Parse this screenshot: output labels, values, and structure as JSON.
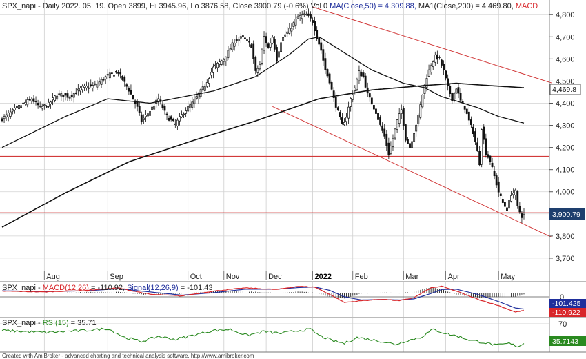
{
  "header": {
    "main_title": "SPX_napi - Daily 2022. 05. 19. Open 3899, Hi 3945.96, Lo 3876.58, Close 3900.79 (-0.6%) Vol 0 ",
    "ma50_label": "MA(Close,50) = 4,309.88, ",
    "ma200_label": "MA1(Close,200) = 4,469.80, ",
    "macd_tail": "MACD",
    "macd_title_prefix": "SPX_napi - ",
    "macd_label": "MACD(12,26)",
    "macd_value": " = -110.92, ",
    "signal_label": "Signal(12,26,9)",
    "signal_value": " = -101.43",
    "rsi_title_prefix": "SPX_napi - ",
    "rsi_label": "RSI(15)",
    "rsi_value": " = 35.71"
  },
  "footer": "Created with AmiBroker - advanced charting and technical analysis software. http://www.amibroker.com",
  "colors": {
    "up": "#111111",
    "down": "#111111",
    "ma": "#111111",
    "trend": "#d23a3a",
    "macd": "#d8262a",
    "signal": "#1f2f9c",
    "rsi": "#2a8a20",
    "grid": "#c8c8c8",
    "blue_text": "#1f2f9c",
    "red_text": "#d8262a",
    "green_text": "#2a8a20"
  },
  "chart_data": [
    {
      "type": "candlestick",
      "symbol": "SPX_napi",
      "ylim": [
        3600,
        4860
      ],
      "y_ticks": [
        "4,800",
        "4,700",
        "4,600",
        "4,500",
        "4,400",
        "4,300",
        "4,200",
        "4,100",
        "4,000",
        "3,900",
        "3,800",
        "3,700"
      ],
      "y_tick_values": [
        4800,
        4700,
        4600,
        4500,
        4400,
        4300,
        4200,
        4100,
        4000,
        3900,
        3800,
        3700
      ],
      "x_months": [
        "Aug",
        "Sep",
        "Oct",
        "Nov",
        "Dec",
        "2022",
        "Feb",
        "Mar",
        "Apr",
        "May"
      ],
      "x_month_index": [
        20,
        50,
        88,
        105,
        125,
        147,
        166,
        190,
        210,
        235
      ],
      "num_bars": 248,
      "anchors": [
        [
          0,
          4330
        ],
        [
          8,
          4385
        ],
        [
          14,
          4420
        ],
        [
          18,
          4380
        ],
        [
          22,
          4395
        ],
        [
          26,
          4440
        ],
        [
          32,
          4430
        ],
        [
          38,
          4470
        ],
        [
          44,
          4480
        ],
        [
          50,
          4525
        ],
        [
          55,
          4540
        ],
        [
          60,
          4460
        ],
        [
          64,
          4380
        ],
        [
          66,
          4320
        ],
        [
          70,
          4365
        ],
        [
          74,
          4420
        ],
        [
          78,
          4340
        ],
        [
          82,
          4305
        ],
        [
          86,
          4360
        ],
        [
          90,
          4400
        ],
        [
          96,
          4480
        ],
        [
          100,
          4560
        ],
        [
          105,
          4600
        ],
        [
          110,
          4680
        ],
        [
          114,
          4700
        ],
        [
          118,
          4660
        ],
        [
          120,
          4540
        ],
        [
          122,
          4575
        ],
        [
          124,
          4700
        ],
        [
          126,
          4650
        ],
        [
          128,
          4700
        ],
        [
          130,
          4600
        ],
        [
          132,
          4680
        ],
        [
          134,
          4710
        ],
        [
          136,
          4730
        ],
        [
          140,
          4790
        ],
        [
          144,
          4800
        ],
        [
          147,
          4770
        ],
        [
          149,
          4700
        ],
        [
          151,
          4640
        ],
        [
          153,
          4550
        ],
        [
          155,
          4500
        ],
        [
          157,
          4420
        ],
        [
          159,
          4360
        ],
        [
          161,
          4300
        ],
        [
          163,
          4340
        ],
        [
          165,
          4420
        ],
        [
          167,
          4470
        ],
        [
          169,
          4540
        ],
        [
          171,
          4520
        ],
        [
          173,
          4440
        ],
        [
          175,
          4400
        ],
        [
          177,
          4360
        ],
        [
          179,
          4300
        ],
        [
          181,
          4250
        ],
        [
          183,
          4170
        ],
        [
          185,
          4240
        ],
        [
          187,
          4320
        ],
        [
          189,
          4370
        ],
        [
          191,
          4240
        ],
        [
          193,
          4200
        ],
        [
          195,
          4270
        ],
        [
          197,
          4340
        ],
        [
          199,
          4440
        ],
        [
          201,
          4520
        ],
        [
          203,
          4575
        ],
        [
          205,
          4610
        ],
        [
          207,
          4600
        ],
        [
          209,
          4545
        ],
        [
          211,
          4470
        ],
        [
          213,
          4420
        ],
        [
          215,
          4470
        ],
        [
          217,
          4410
        ],
        [
          219,
          4380
        ],
        [
          221,
          4320
        ],
        [
          223,
          4270
        ],
        [
          225,
          4180
        ],
        [
          226,
          4130
        ],
        [
          227,
          4290
        ],
        [
          229,
          4175
        ],
        [
          231,
          4140
        ],
        [
          233,
          4070
        ],
        [
          235,
          4000
        ],
        [
          237,
          3950
        ],
        [
          239,
          3920
        ],
        [
          241,
          3990
        ],
        [
          243,
          4000
        ],
        [
          244,
          3930
        ],
        [
          246,
          3890
        ],
        [
          247,
          3900
        ]
      ],
      "close": 3900.79,
      "ma50": 4309.88,
      "ma200": 4469.8,
      "ma50_anchors": [
        [
          0,
          4200
        ],
        [
          30,
          4340
        ],
        [
          50,
          4420
        ],
        [
          70,
          4400
        ],
        [
          100,
          4455
        ],
        [
          120,
          4520
        ],
        [
          136,
          4620
        ],
        [
          145,
          4690
        ],
        [
          150,
          4700
        ],
        [
          160,
          4640
        ],
        [
          175,
          4550
        ],
        [
          190,
          4490
        ],
        [
          200,
          4470
        ],
        [
          208,
          4430
        ],
        [
          215,
          4410
        ],
        [
          225,
          4380
        ],
        [
          235,
          4340
        ],
        [
          247,
          4310
        ]
      ],
      "ma200_anchors": [
        [
          0,
          3840
        ],
        [
          30,
          3995
        ],
        [
          60,
          4135
        ],
        [
          90,
          4230
        ],
        [
          120,
          4320
        ],
        [
          150,
          4420
        ],
        [
          175,
          4460
        ],
        [
          200,
          4480
        ],
        [
          215,
          4490
        ],
        [
          230,
          4480
        ],
        [
          247,
          4470
        ]
      ],
      "hlines": [
        4160,
        3905
      ],
      "trend_lines": [
        [
          [
            147,
            4835
          ],
          [
            260,
            4492
          ]
        ],
        [
          [
            128,
            4385
          ],
          [
            260,
            3795
          ]
        ]
      ],
      "price_badge": "4,469.8",
      "close_badge": "3,900.79"
    },
    {
      "type": "line",
      "name": "MACD(12,26)",
      "zero_label": "0",
      "ylim": [
        -150,
        60
      ],
      "macd_anchors": [
        [
          0,
          10
        ],
        [
          20,
          5
        ],
        [
          40,
          15
        ],
        [
          55,
          30
        ],
        [
          70,
          -10
        ],
        [
          85,
          -20
        ],
        [
          100,
          10
        ],
        [
          115,
          30
        ],
        [
          130,
          20
        ],
        [
          140,
          40
        ],
        [
          148,
          35
        ],
        [
          155,
          -10
        ],
        [
          162,
          -60
        ],
        [
          170,
          -50
        ],
        [
          180,
          -40
        ],
        [
          188,
          -50
        ],
        [
          195,
          -30
        ],
        [
          203,
          30
        ],
        [
          208,
          40
        ],
        [
          215,
          10
        ],
        [
          225,
          -40
        ],
        [
          235,
          -80
        ],
        [
          243,
          -120
        ],
        [
          247,
          -111
        ]
      ],
      "signal_anchors": [
        [
          0,
          12
        ],
        [
          20,
          8
        ],
        [
          40,
          12
        ],
        [
          55,
          25
        ],
        [
          70,
          5
        ],
        [
          85,
          -15
        ],
        [
          100,
          0
        ],
        [
          115,
          22
        ],
        [
          130,
          22
        ],
        [
          140,
          32
        ],
        [
          148,
          36
        ],
        [
          155,
          15
        ],
        [
          162,
          -25
        ],
        [
          170,
          -45
        ],
        [
          180,
          -42
        ],
        [
          188,
          -45
        ],
        [
          195,
          -38
        ],
        [
          203,
          -5
        ],
        [
          208,
          20
        ],
        [
          215,
          22
        ],
        [
          225,
          -10
        ],
        [
          235,
          -55
        ],
        [
          243,
          -95
        ],
        [
          247,
          -101
        ]
      ],
      "macd_badge": "-110.922",
      "signal_badge": "-101.425"
    },
    {
      "type": "line",
      "name": "RSI(15)",
      "tick_label": "70",
      "ylim": [
        20,
        85
      ],
      "rsi_anchors": [
        [
          0,
          62
        ],
        [
          10,
          60
        ],
        [
          20,
          58
        ],
        [
          30,
          60
        ],
        [
          40,
          62
        ],
        [
          50,
          66
        ],
        [
          58,
          48
        ],
        [
          66,
          40
        ],
        [
          74,
          50
        ],
        [
          82,
          44
        ],
        [
          90,
          52
        ],
        [
          100,
          62
        ],
        [
          108,
          64
        ],
        [
          116,
          52
        ],
        [
          124,
          60
        ],
        [
          132,
          56
        ],
        [
          140,
          62
        ],
        [
          146,
          64
        ],
        [
          150,
          52
        ],
        [
          156,
          42
        ],
        [
          162,
          36
        ],
        [
          168,
          48
        ],
        [
          174,
          44
        ],
        [
          180,
          40
        ],
        [
          186,
          34
        ],
        [
          192,
          42
        ],
        [
          198,
          48
        ],
        [
          204,
          64
        ],
        [
          210,
          56
        ],
        [
          216,
          50
        ],
        [
          222,
          42
        ],
        [
          228,
          38
        ],
        [
          234,
          32
        ],
        [
          240,
          36
        ],
        [
          244,
          30
        ],
        [
          247,
          35.7
        ]
      ],
      "rsi_badge": "35.7143"
    }
  ]
}
